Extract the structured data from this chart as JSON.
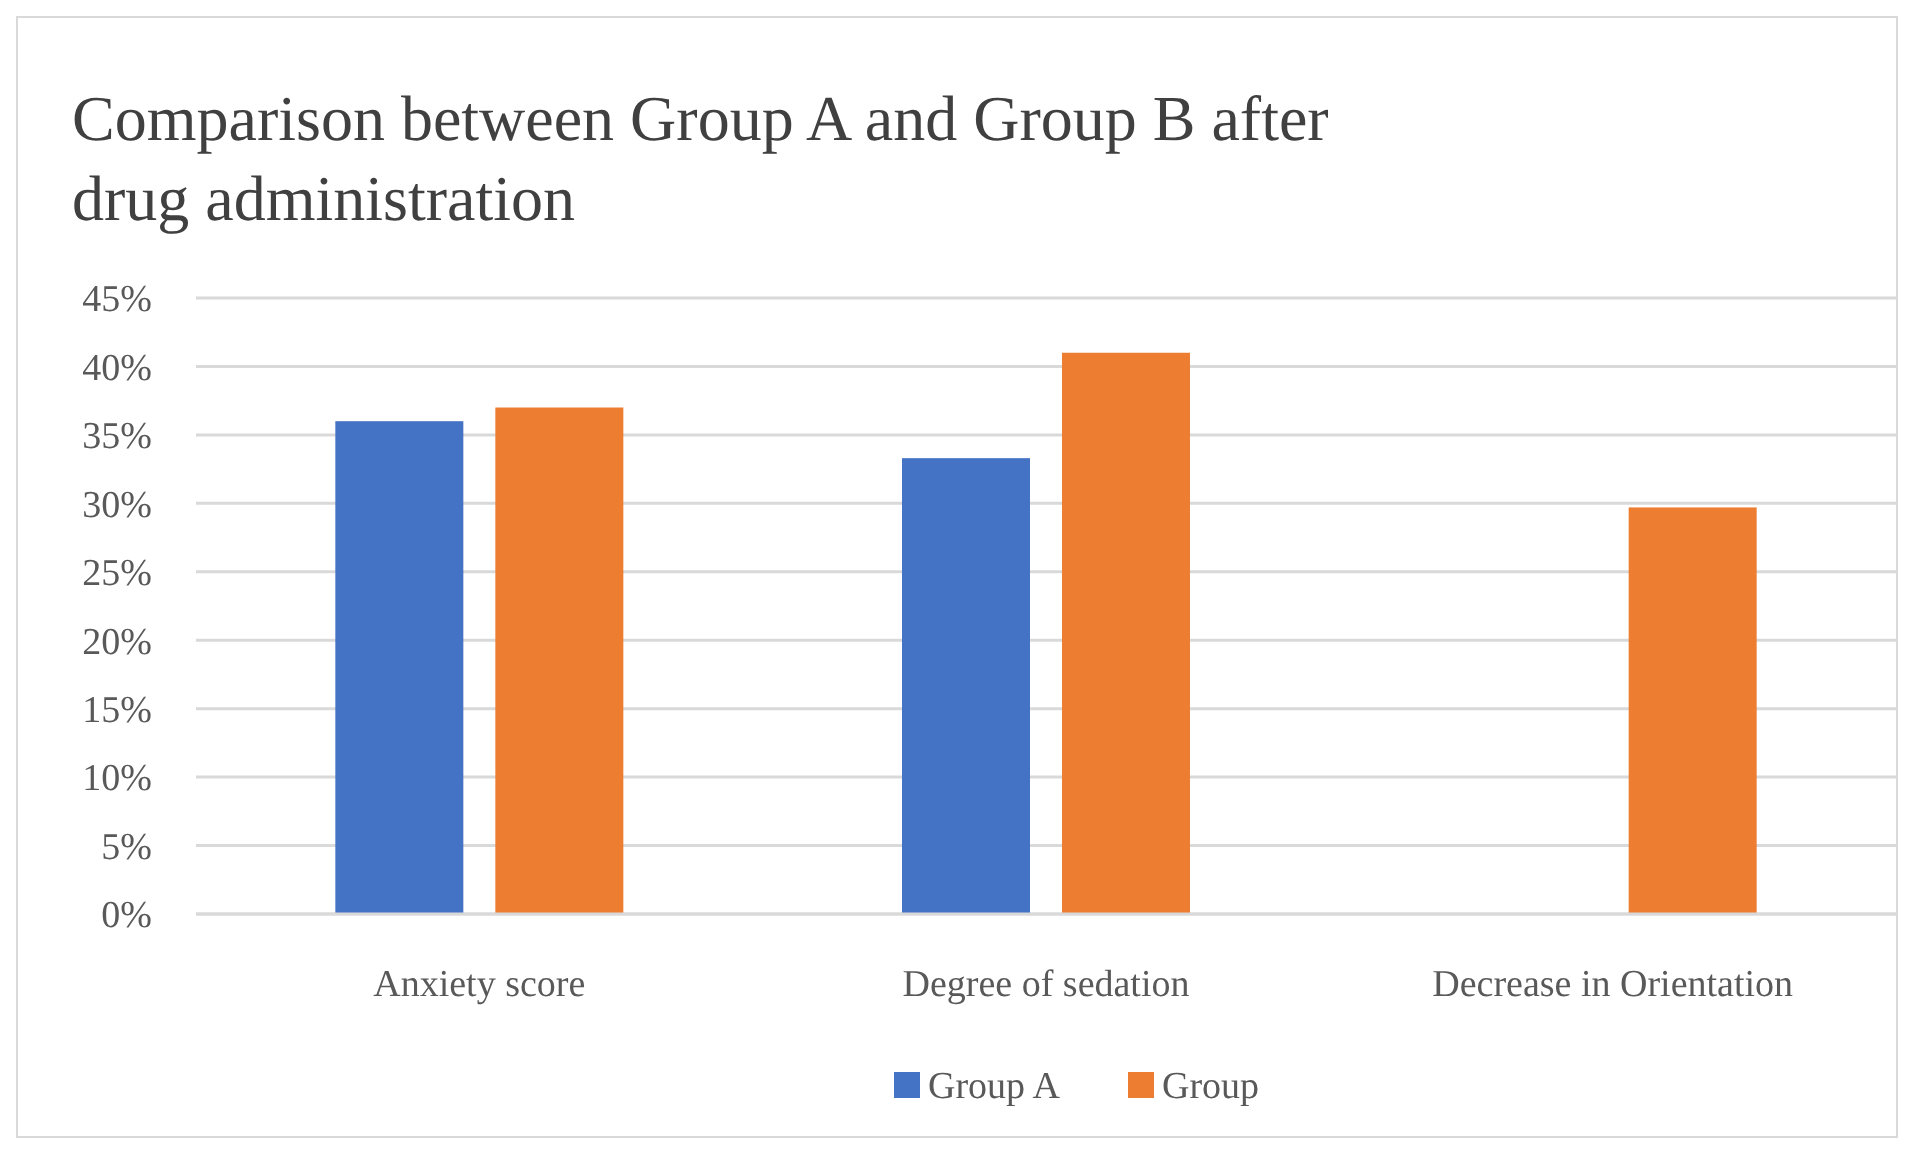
{
  "chart_data": {
    "type": "bar",
    "title": "Comparison between Group A and Group B after drug administration",
    "categories": [
      "Anxiety score",
      "Degree of sedation",
      "Decrease in Orientation"
    ],
    "series": [
      {
        "name": "Group A",
        "color": "#4472c4",
        "values": [
          36,
          33.3,
          0
        ]
      },
      {
        "name": "Group",
        "color": "#ed7d31",
        "values": [
          37,
          41,
          29.7
        ]
      }
    ],
    "ylim": [
      0,
      45
    ],
    "yticks": [
      {
        "value": 0,
        "label": "0%"
      },
      {
        "value": 5,
        "label": "5%"
      },
      {
        "value": 10,
        "label": "10%"
      },
      {
        "value": 15,
        "label": "15%"
      },
      {
        "value": 20,
        "label": "20%"
      },
      {
        "value": 25,
        "label": "25%"
      },
      {
        "value": 30,
        "label": "30%"
      },
      {
        "value": 35,
        "label": "35%"
      },
      {
        "value": 40,
        "label": "40%"
      },
      {
        "value": 45,
        "label": "45%"
      }
    ],
    "grid": "y",
    "legend": "bottom"
  }
}
